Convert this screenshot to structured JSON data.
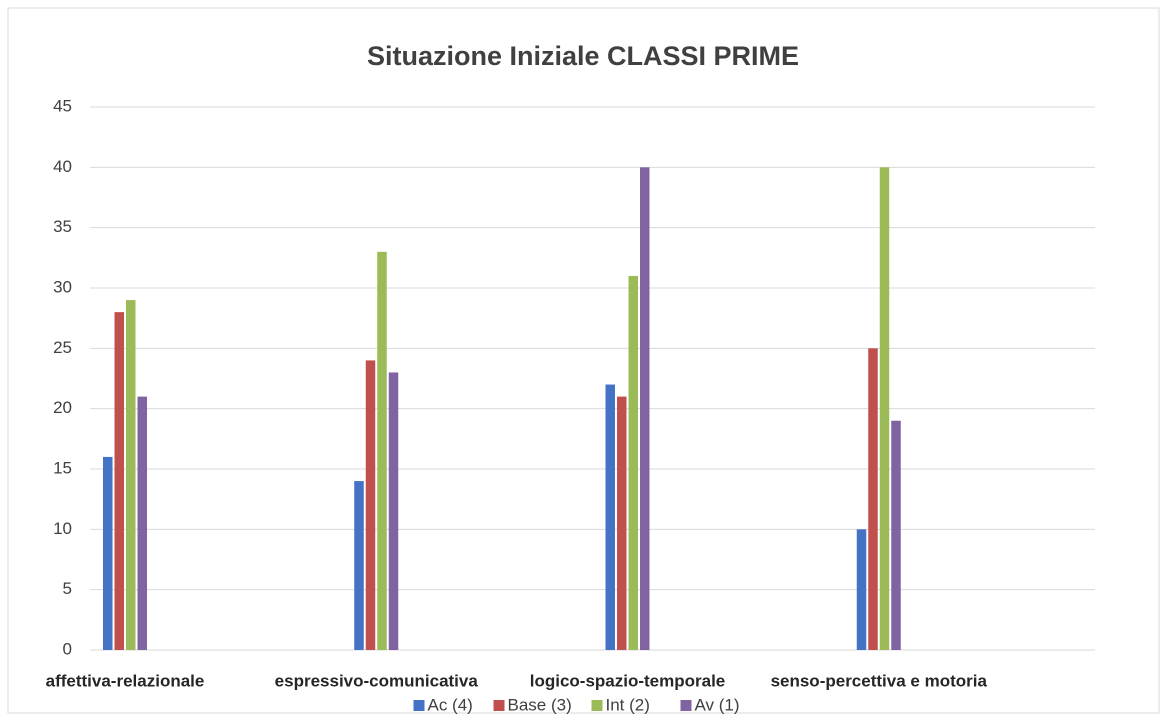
{
  "chart_data": {
    "type": "bar",
    "title": "Situazione Iniziale CLASSI PRIME",
    "categories": [
      "affettiva-relazionale",
      "espressivo-comunicativa",
      "logico-spazio-temporale",
      "senso-percettiva e motoria"
    ],
    "series": [
      {
        "name": "Ac (4)",
        "color": "#4472c4",
        "values": [
          16,
          14,
          22,
          10
        ]
      },
      {
        "name": "Base (3)",
        "color": "#c0504d",
        "values": [
          28,
          24,
          21,
          25
        ]
      },
      {
        "name": "Int (2)",
        "color": "#9bbb59",
        "values": [
          29,
          33,
          31,
          40
        ]
      },
      {
        "name": "Av (1)",
        "color": "#8064a2",
        "values": [
          21,
          23,
          40,
          19
        ]
      }
    ],
    "ylim": [
      0,
      45
    ],
    "yticks": [
      0,
      5,
      10,
      15,
      20,
      25,
      30,
      35,
      40,
      45
    ],
    "grid": true,
    "legend": "bottom"
  }
}
